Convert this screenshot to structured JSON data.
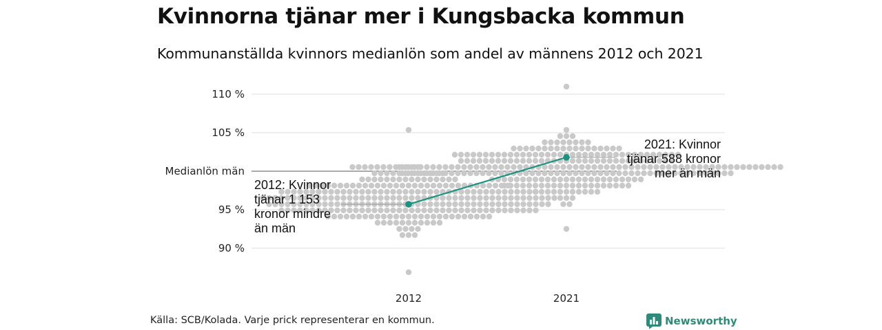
{
  "title": "Kvinnorna tjänar mer i Kungsbacka kommun",
  "subtitle": "Kommunanställda kvinnors medianlön som andel av männens 2012 och 2021",
  "source": "Källa: SCB/Kolada. Varje prick representerar en kommun.",
  "brand": {
    "name": "Newsworthy",
    "icon": "bar-chart-icon",
    "color": "#2e8b7a"
  },
  "colors": {
    "dots": "#c9c9c9",
    "highlight": "#1a9480",
    "grid": "#dcdcdc",
    "reference": "#555555"
  },
  "chart_data": {
    "type": "scatter",
    "title": "Kvinnorna tjänar mer i Kungsbacka kommun",
    "subtitle": "Kommunanställda kvinnors medianlön som andel av männens 2012 och 2021",
    "categories": [
      "2012",
      "2021"
    ],
    "y_ticks": [
      {
        "value": 90,
        "label": "90 %"
      },
      {
        "value": 95,
        "label": "95 %"
      },
      {
        "value": 100,
        "label": "Medianlön män"
      },
      {
        "value": 105,
        "label": "105 %"
      },
      {
        "value": 110,
        "label": "110 %"
      }
    ],
    "ylim": [
      85.5,
      111.5
    ],
    "grid": true,
    "reference_line": {
      "value": 100,
      "label": "Medianlön män"
    },
    "highlight": {
      "name": "Kungsbacka",
      "values": [
        95.7,
        101.8
      ],
      "annotations": [
        [
          "2012: Kvinnor",
          "tjänar 1 153",
          "kronor mindre",
          "än män"
        ],
        [
          "2021: Kvinnor",
          "tjänar 588 kronor",
          "mer än män"
        ]
      ]
    },
    "distribution": [
      {
        "category": "2012",
        "mean": 96.3,
        "sd": 2.6,
        "min": 86.5,
        "max": 105.3,
        "count": 290
      },
      {
        "category": "2021",
        "mean": 100.6,
        "sd": 2.5,
        "min": 92.6,
        "max": 111.3,
        "count": 290
      }
    ]
  }
}
